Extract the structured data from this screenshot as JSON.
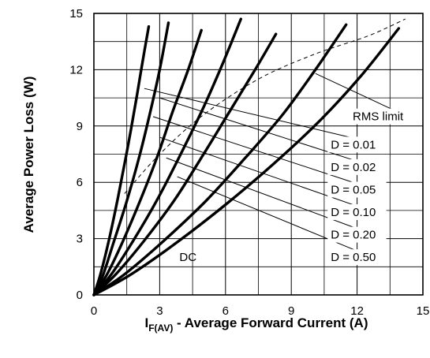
{
  "chart_data": {
    "type": "line",
    "title": "",
    "xlabel": {
      "prefix": "I",
      "subscript": "F(AV)",
      "suffix": " - Average Forward Current (A)"
    },
    "ylabel": "Average Power Loss (W)",
    "xlim": [
      0,
      15
    ],
    "ylim": [
      0,
      15
    ],
    "xticks": [
      0,
      3,
      6,
      9,
      12,
      15
    ],
    "yticks": [
      0,
      3,
      6,
      9,
      12,
      15
    ],
    "x_tick_labels": [
      "0",
      "3",
      "6",
      "9",
      "12",
      "15"
    ],
    "y_tick_labels": [
      "0",
      "3",
      "6",
      "9",
      "12",
      "15"
    ],
    "grid": true,
    "series": [
      {
        "name": "D = 0.01",
        "points": [
          [
            0,
            0
          ],
          [
            0.3,
            1.1
          ],
          [
            0.7,
            3.0
          ],
          [
            1.1,
            5.2
          ],
          [
            1.5,
            7.6
          ],
          [
            1.9,
            10.2
          ],
          [
            2.2,
            12.3
          ],
          [
            2.5,
            14.3
          ]
        ]
      },
      {
        "name": "D = 0.02",
        "points": [
          [
            0,
            0
          ],
          [
            0.4,
            1.0
          ],
          [
            0.9,
            2.8
          ],
          [
            1.5,
            5.0
          ],
          [
            2.1,
            7.5
          ],
          [
            2.6,
            9.9
          ],
          [
            3.0,
            12.0
          ],
          [
            3.4,
            14.5
          ]
        ]
      },
      {
        "name": "D = 0.05",
        "points": [
          [
            0,
            0
          ],
          [
            0.6,
            1.1
          ],
          [
            1.3,
            2.8
          ],
          [
            2.1,
            5.0
          ],
          [
            2.9,
            7.4
          ],
          [
            3.6,
            9.8
          ],
          [
            4.3,
            12.0
          ],
          [
            4.9,
            14.1
          ]
        ]
      },
      {
        "name": "D = 0.10",
        "points": [
          [
            0,
            0
          ],
          [
            0.8,
            1.1
          ],
          [
            1.8,
            2.9
          ],
          [
            2.9,
            5.1
          ],
          [
            4.0,
            7.6
          ],
          [
            5.0,
            10.0
          ],
          [
            5.9,
            12.4
          ],
          [
            6.7,
            14.7
          ]
        ]
      },
      {
        "name": "D = 0.20",
        "points": [
          [
            0,
            0
          ],
          [
            1.0,
            1.1
          ],
          [
            2.3,
            2.9
          ],
          [
            3.7,
            5.1
          ],
          [
            5.0,
            7.5
          ],
          [
            6.2,
            9.8
          ],
          [
            7.3,
            11.9
          ],
          [
            8.3,
            13.9
          ]
        ]
      },
      {
        "name": "D = 0.50",
        "points": [
          [
            0,
            0
          ],
          [
            1.4,
            1.1
          ],
          [
            3.2,
            2.9
          ],
          [
            5.1,
            5.0
          ],
          [
            6.9,
            7.3
          ],
          [
            8.6,
            9.6
          ],
          [
            10.1,
            12.0
          ],
          [
            11.5,
            14.4
          ]
        ]
      },
      {
        "name": "DC",
        "points": [
          [
            0,
            0
          ],
          [
            1.7,
            1.1
          ],
          [
            3.9,
            2.9
          ],
          [
            6.2,
            5.0
          ],
          [
            8.4,
            7.2
          ],
          [
            10.4,
            9.4
          ],
          [
            12.2,
            11.7
          ],
          [
            13.9,
            14.2
          ]
        ]
      }
    ],
    "rms_limit": {
      "name": "RMS limit",
      "points": [
        [
          1.4,
          5.4
        ],
        [
          3.0,
          7.5
        ],
        [
          5.0,
          9.6
        ],
        [
          7.5,
          11.5
        ],
        [
          10.0,
          12.8
        ],
        [
          12.5,
          13.8
        ],
        [
          14.2,
          14.7
        ]
      ]
    },
    "annotations": [
      {
        "text": "RMS limit",
        "label_at": [
          11.8,
          9.3
        ],
        "points_to": [
          10.1,
          11.8
        ]
      },
      {
        "text": "D = 0.01",
        "label_at": [
          10.8,
          7.8
        ],
        "points_to": [
          2.3,
          11.0
        ]
      },
      {
        "text": "D = 0.02",
        "label_at": [
          10.8,
          6.6
        ],
        "points_to": [
          3.0,
          10.5
        ]
      },
      {
        "text": "D = 0.05",
        "label_at": [
          10.8,
          5.4
        ],
        "points_to": [
          2.7,
          9.5
        ]
      },
      {
        "text": "D = 0.10",
        "label_at": [
          10.8,
          4.2
        ],
        "points_to": [
          3.0,
          8.4
        ]
      },
      {
        "text": "D = 0.20",
        "label_at": [
          10.8,
          3.0
        ],
        "points_to": [
          3.3,
          7.3
        ]
      },
      {
        "text": "D = 0.50",
        "label_at": [
          10.8,
          1.8
        ],
        "points_to": [
          3.8,
          6.3
        ]
      },
      {
        "text": "DC",
        "label_at": [
          3.9,
          1.8
        ],
        "points_to": null
      }
    ]
  }
}
